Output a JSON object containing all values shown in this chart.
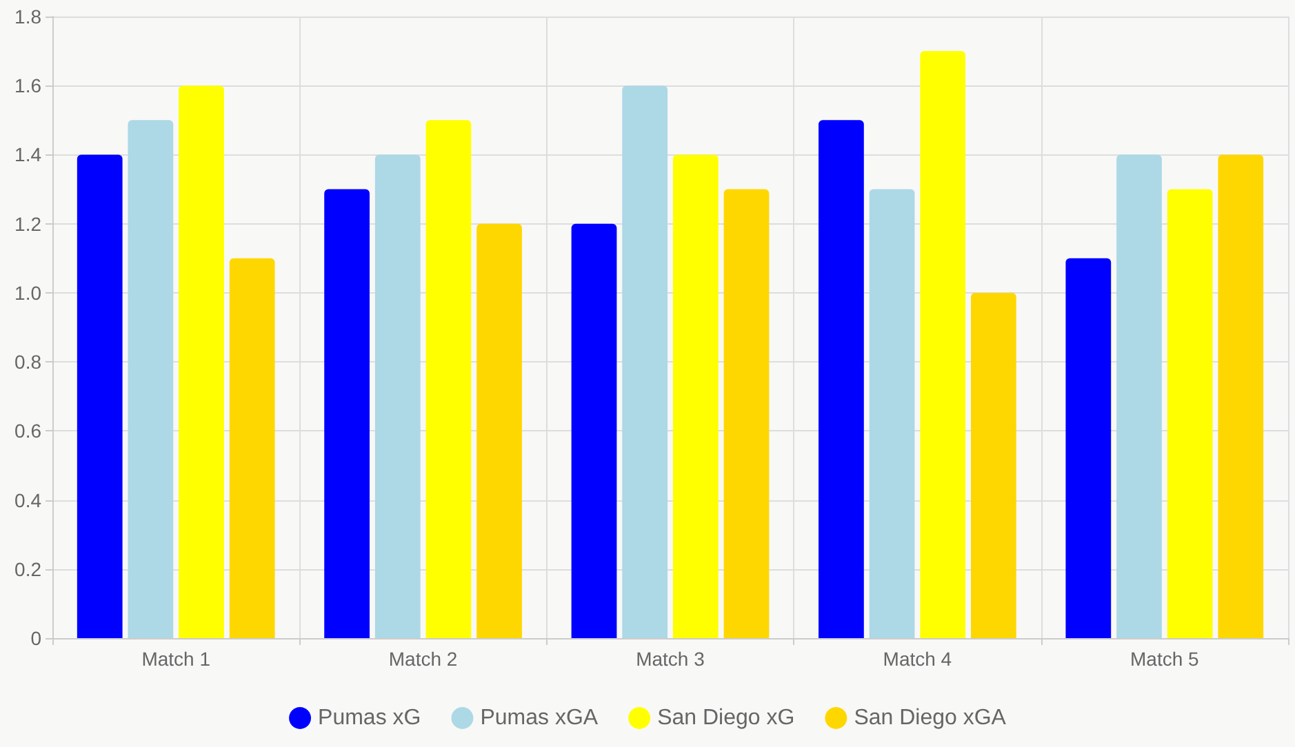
{
  "chart_data": {
    "type": "bar",
    "categories": [
      "Match 1",
      "Match 2",
      "Match 3",
      "Match 4",
      "Match 5"
    ],
    "series": [
      {
        "name": "Pumas xG",
        "color": "#0000ff",
        "values": [
          1.4,
          1.3,
          1.2,
          1.5,
          1.1
        ]
      },
      {
        "name": "Pumas xGA",
        "color": "#add8e6",
        "values": [
          1.5,
          1.4,
          1.6,
          1.3,
          1.4
        ]
      },
      {
        "name": "San Diego xG",
        "color": "#ffff00",
        "values": [
          1.6,
          1.5,
          1.4,
          1.7,
          1.3
        ]
      },
      {
        "name": "San Diego xGA",
        "color": "#ffd700",
        "values": [
          1.1,
          1.2,
          1.3,
          1.0,
          1.4
        ]
      }
    ],
    "ylim": [
      0,
      1.8
    ],
    "yticks": [
      0,
      0.2,
      0.4,
      0.6,
      0.8,
      {
        "value": 1,
        "label": "1.0"
      },
      1.2,
      1.4,
      1.6,
      1.8
    ],
    "grid": true,
    "legend": "bottom"
  }
}
